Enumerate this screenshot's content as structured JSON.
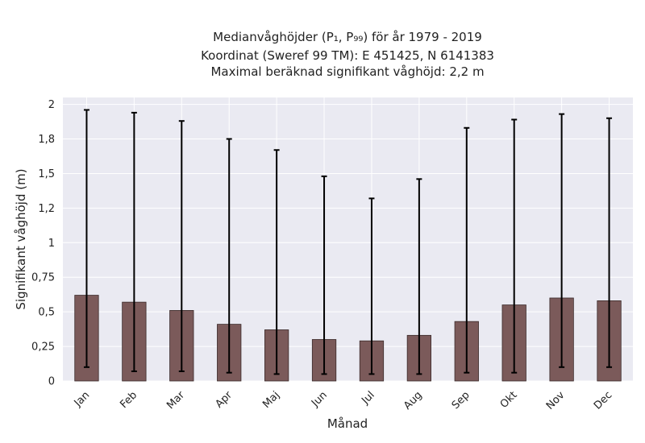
{
  "chart_data": {
    "type": "bar",
    "title_lines": [
      "Medianvåghöjder (P₁, P₉₉) för år 1979 - 2019",
      "Koordinat (Sweref 99 TM): E 451425, N 6141383",
      "Maximal beräknad signifikant våghöjd: 2,2 m"
    ],
    "xlabel": "Månad",
    "ylabel": "Signifikant våghöjd (m)",
    "categories": [
      "Jan",
      "Feb",
      "Mar",
      "Apr",
      "Maj",
      "Jun",
      "Jul",
      "Aug",
      "Sep",
      "Okt",
      "Nov",
      "Dec"
    ],
    "series": [
      {
        "values": [
          0.62,
          0.57,
          0.51,
          0.41,
          0.37,
          0.3,
          0.29,
          0.33,
          0.43,
          0.55,
          0.6,
          0.58
        ],
        "error_low": [
          0.1,
          0.07,
          0.07,
          0.06,
          0.05,
          0.05,
          0.05,
          0.05,
          0.06,
          0.06,
          0.1,
          0.1
        ],
        "error_high": [
          1.96,
          1.94,
          1.88,
          1.75,
          1.67,
          1.48,
          1.32,
          1.46,
          1.83,
          1.89,
          1.93,
          1.9
        ]
      }
    ],
    "ylim": [
      0,
      2.05
    ],
    "yticks": [
      0,
      0.25,
      0.5,
      0.75,
      1,
      1.25,
      1.5,
      1.75,
      2
    ],
    "ytick_labels": [
      "0",
      "0,25",
      "0,5",
      "0,75",
      "1",
      "1,2",
      "1,5",
      "1,8",
      "2"
    ],
    "grid": true,
    "colors": {
      "bar": "#7b5a5a",
      "bar_edge": "#3a2a2a",
      "error_bar": "#000000",
      "background": "#eaeaf2",
      "grid": "#ffffff"
    }
  }
}
